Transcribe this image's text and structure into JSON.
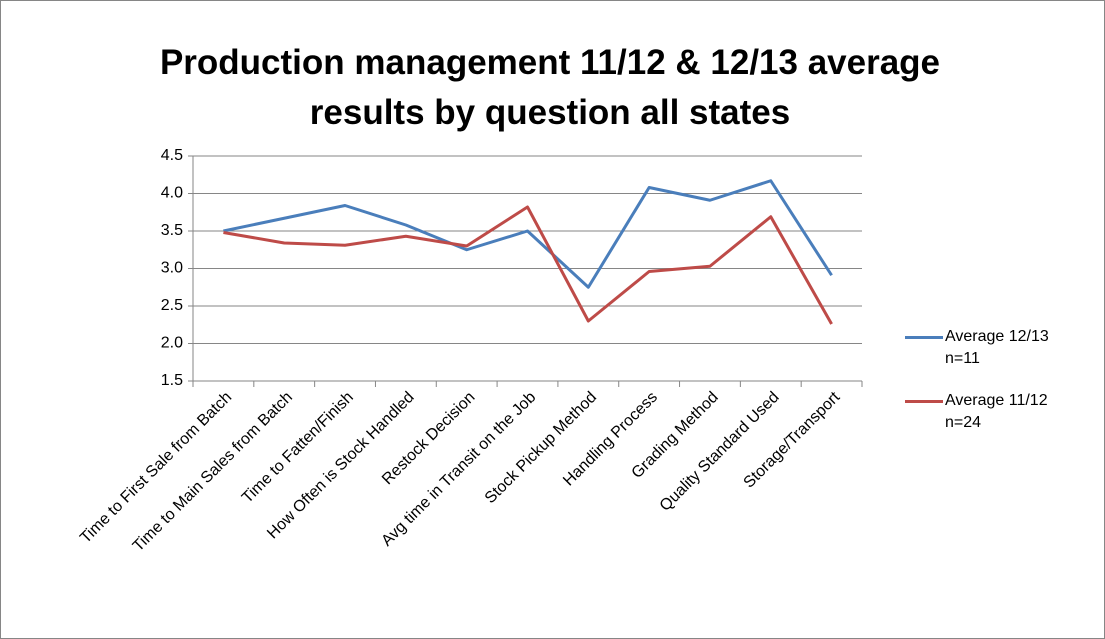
{
  "chart_data": {
    "type": "line",
    "title": "Production management  11/12 & 12/13 average results by question all states",
    "categories": [
      "Time to First Sale from Batch",
      "Time to Main Sales from Batch",
      "Time to Fatten/Finish",
      "How Often is Stock Handled",
      "Restock Decision",
      "Avg time in Transit on the Job",
      "Stock Pickup Method",
      "Handling Process",
      "Grading Method",
      "Quality Standard Used",
      "Storage/Transport"
    ],
    "series": [
      {
        "name": "Average 12/13 n=11",
        "color": "#4a7ebb",
        "values": [
          3.5,
          3.67,
          3.84,
          3.58,
          3.25,
          3.5,
          2.75,
          4.08,
          3.91,
          4.17,
          2.91
        ]
      },
      {
        "name": "Average 11/12 n=24",
        "color": "#be4b48",
        "values": [
          3.48,
          3.34,
          3.31,
          3.43,
          3.3,
          3.82,
          2.3,
          2.96,
          3.03,
          3.69,
          2.26
        ]
      }
    ],
    "ylim": [
      1.5,
      4.5
    ],
    "yticks": [
      1.5,
      {
        "value": 2,
        "label": "2.0"
      },
      2.5,
      {
        "value": 3,
        "label": "3.0"
      },
      3.5,
      {
        "value": 4,
        "label": "4.0"
      },
      4.5
    ],
    "grid": true,
    "legend": "right"
  }
}
